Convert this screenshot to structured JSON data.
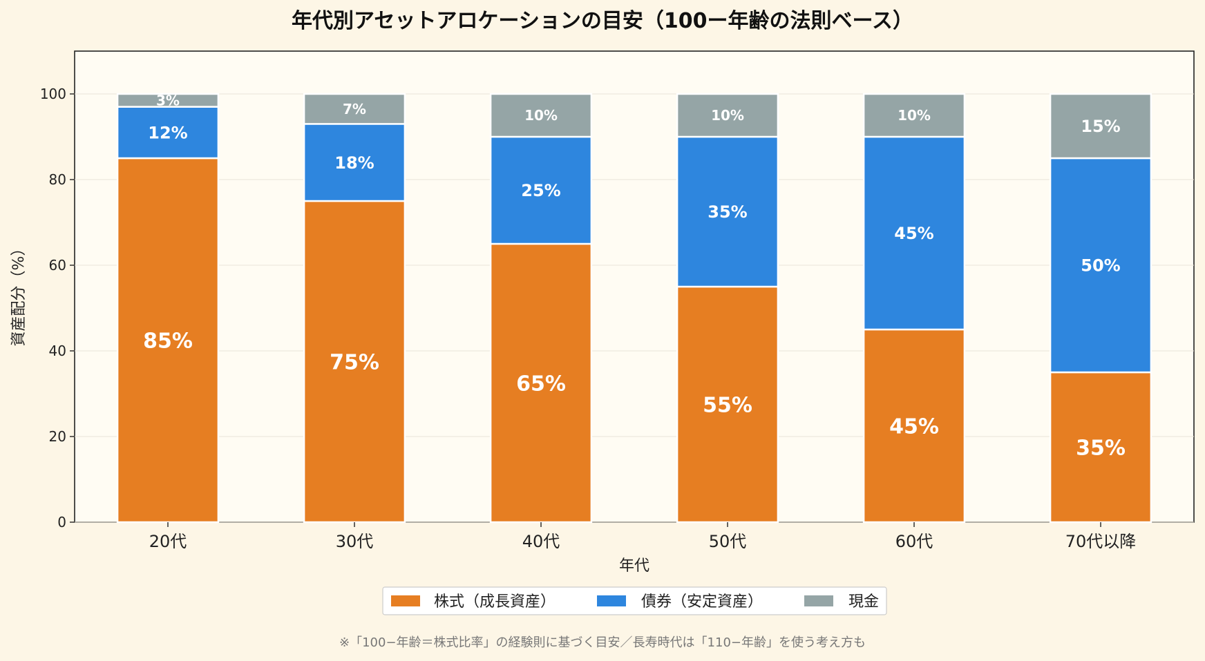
{
  "chart_data": {
    "type": "bar",
    "stacked": true,
    "title": "年代別アセットアロケーションの目安（100ー年齢の法則ベース）",
    "xlabel": "年代",
    "ylabel": "資産配分（%）",
    "ylim": [
      0,
      110
    ],
    "yticks": [
      0,
      20,
      40,
      60,
      80,
      100
    ],
    "grid": true,
    "legend_position": "bottom-center",
    "categories": [
      "20代",
      "30代",
      "40代",
      "50代",
      "60代",
      "70代以降"
    ],
    "series": [
      {
        "name": "株式（成長資産）",
        "color": "#e67e22",
        "values": [
          85,
          75,
          65,
          55,
          45,
          35
        ],
        "labels": [
          "85%",
          "75%",
          "65%",
          "55%",
          "45%",
          "35%"
        ]
      },
      {
        "name": "債券（安定資産）",
        "color": "#2e86de",
        "values": [
          12,
          18,
          25,
          35,
          45,
          50
        ],
        "labels": [
          "12%",
          "18%",
          "25%",
          "35%",
          "45%",
          "50%"
        ]
      },
      {
        "name": "現金",
        "color": "#95a5a6",
        "values": [
          3,
          7,
          10,
          10,
          10,
          15
        ],
        "labels": [
          "3%",
          "7%",
          "10%",
          "10%",
          "10%",
          "15%"
        ]
      }
    ],
    "footnote": "※「100−年齢＝株式比率」の経験則に基づく目安／長寿時代は「110−年齢」を使う考え方も"
  }
}
